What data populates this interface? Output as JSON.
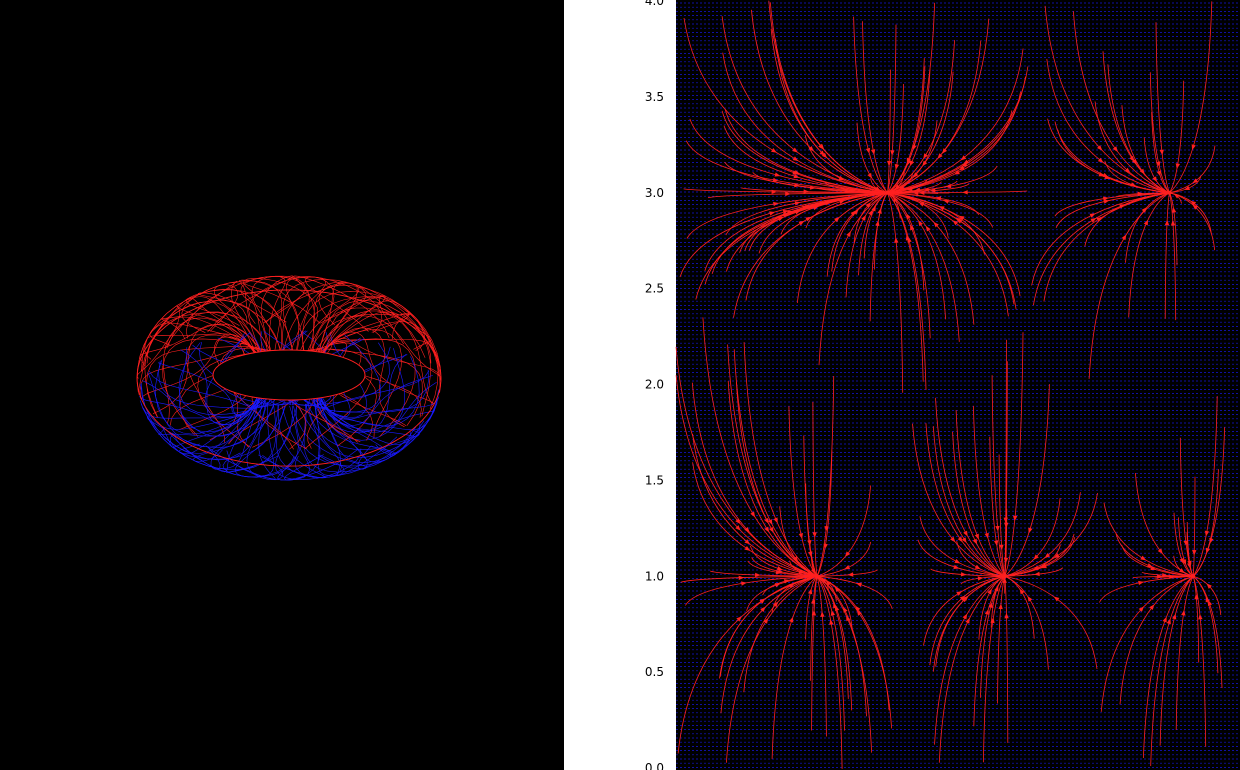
{
  "colors": {
    "background_dark": "#000000",
    "background_light": "#ffffff",
    "stream_red": "#ff2020",
    "stream_blue": "#1a1aff"
  },
  "chart_data": [
    {
      "type": "streamplot-3d",
      "title": "",
      "surface": "torus",
      "colors": {
        "upper": "#ff2020",
        "lower": "#1a1aff"
      },
      "background": "#000000",
      "axes_visible": false
    },
    {
      "type": "streamplot",
      "title": "",
      "xlabel": "",
      "ylabel": "",
      "ylim": [
        0.0,
        4.0
      ],
      "yticks": [
        "0.0",
        "0.5",
        "1.0",
        "1.5",
        "2.0",
        "2.5",
        "3.0",
        "3.5",
        "4.0"
      ],
      "x_tick_labels_visible": false,
      "sinks": [
        {
          "x": 0.375,
          "y": 3.0
        },
        {
          "x": 0.875,
          "y": 3.0
        },
        {
          "x": 0.25,
          "y": 1.0
        },
        {
          "x": 0.583,
          "y": 1.0
        },
        {
          "x": 0.917,
          "y": 1.0
        }
      ],
      "colors": {
        "streamlines": "#ff2020",
        "background_lines": "#1a1aff",
        "face": "#000000"
      },
      "grid": false
    }
  ]
}
